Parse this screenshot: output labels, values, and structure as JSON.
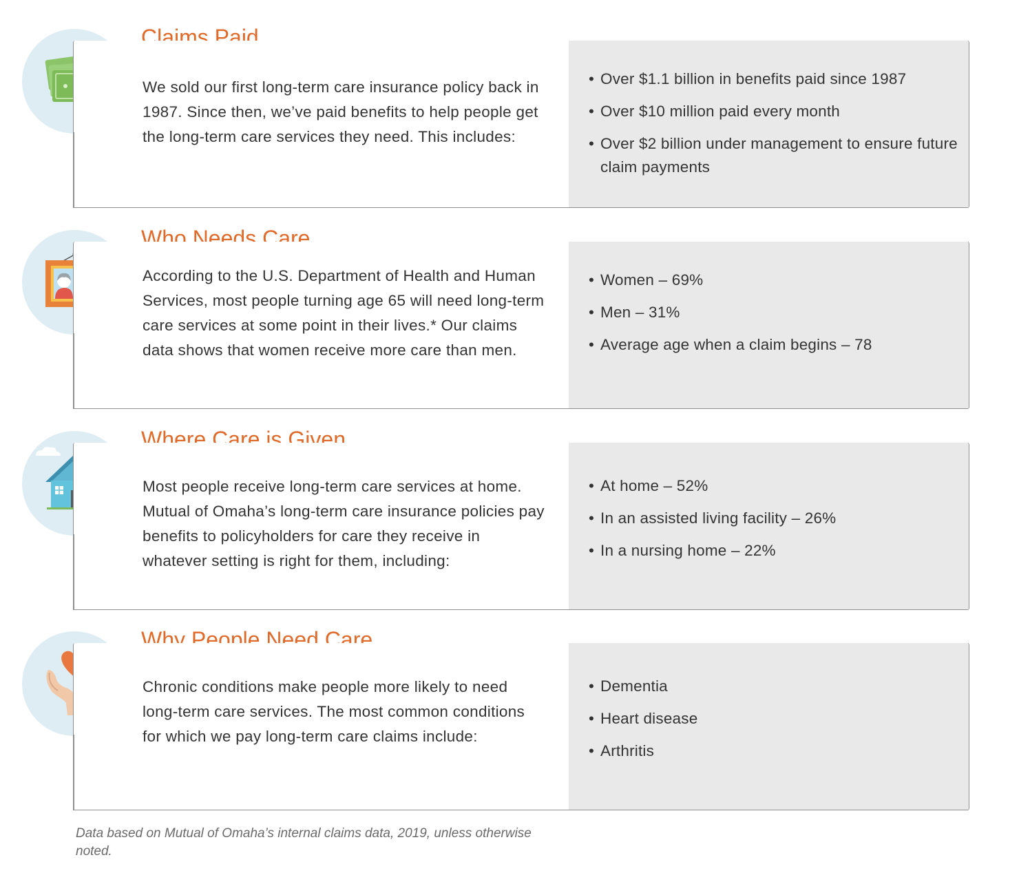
{
  "sections": [
    {
      "title": "Claims Paid",
      "icon": "money-icon",
      "body": "We sold our first long-term care insurance policy back in 1987. Since then, we’ve paid benefits to help people get the long-term care services they need. This includes:",
      "facts": [
        "Over $1.1 billion in benefits paid since 1987",
        "Over $10 million paid every month",
        "Over $2 billion under management to ensure future claim payments"
      ]
    },
    {
      "title": "Who Needs Care",
      "icon": "family-portrait-icon",
      "body": "According to the U.S. Department of Health and Human Services, most people turning age 65 will need long-term care services at some point in their lives.* Our claims data shows that women receive more care than men.",
      "facts": [
        "Women – 69%",
        "Men – 31%",
        "Average age when a claim begins – 78"
      ]
    },
    {
      "title": "Where Care is Given",
      "icon": "house-icon",
      "body": "Most people receive long-term care services at home. Mutual of Omaha’s long-term care insurance policies pay benefits to policyholders for care they receive in whatever setting is right for them, including:",
      "facts": [
        "At home – 52%",
        "In an assisted living facility – 26%",
        "In a nursing home – 22%"
      ]
    },
    {
      "title": "Why People Need Care",
      "icon": "heart-hands-icon",
      "body": "Chronic conditions make people more likely to need long-term care services. The most common conditions for which we pay long-term care claims include:",
      "facts": [
        "Dementia",
        "Heart disease",
        "Arthritis"
      ]
    }
  ],
  "footnote": "Data based on Mutual of Omaha’s internal claims data, 2019, unless otherwise noted.",
  "colors": {
    "title": "#e06a2a",
    "facts_bg": "#e9e9e9",
    "icon_circle": "#deedf4",
    "border": "#8e8e8e"
  }
}
